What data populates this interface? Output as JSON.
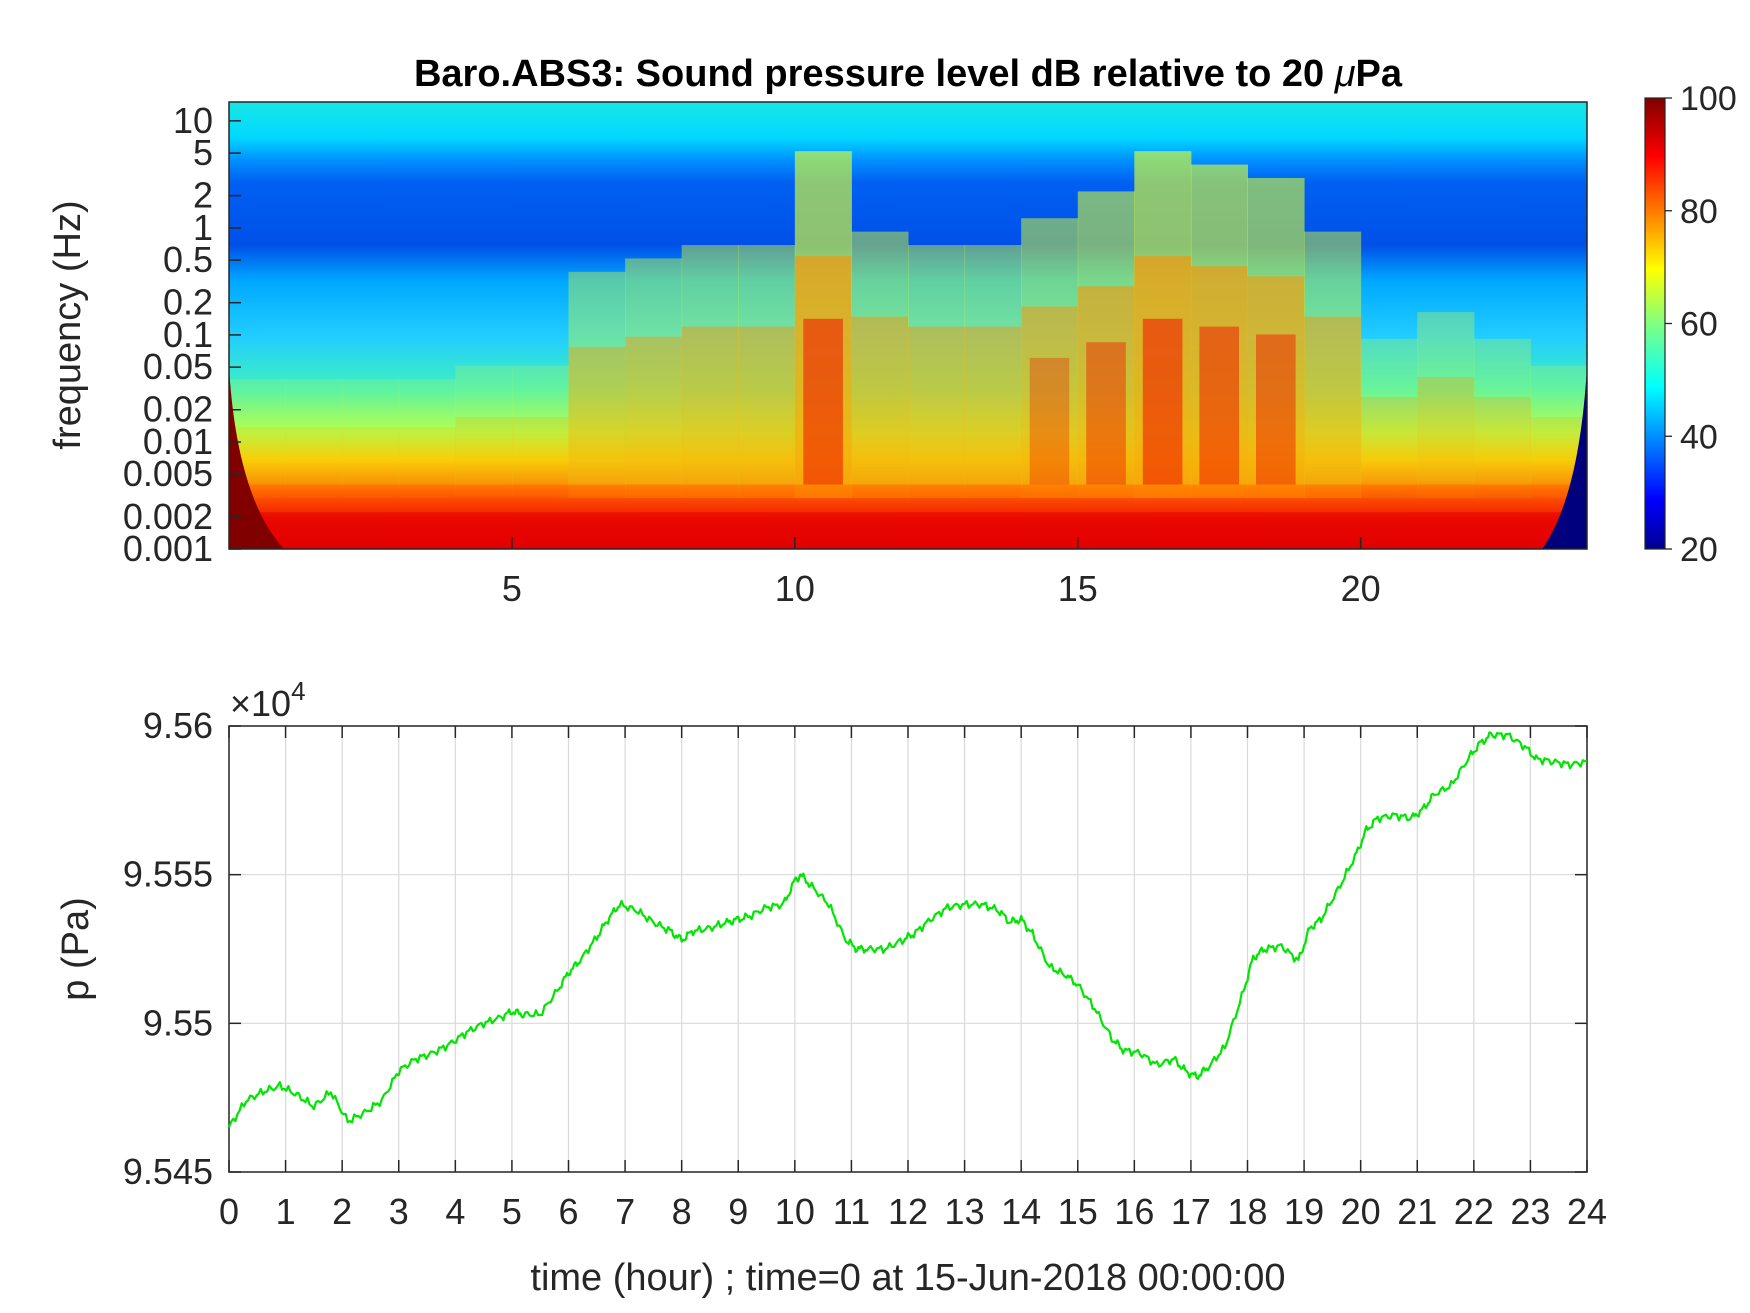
{
  "chart_data": [
    {
      "type": "heatmap",
      "title_prefix": "Baro.ABS3: Sound pressure level dB relative to 20 ",
      "title_mu": "μ",
      "title_suffix": "Pa",
      "ylabel": "frequency (Hz)",
      "xlim": [
        0,
        24
      ],
      "x_ticks": [
        5,
        10,
        15,
        20
      ],
      "y_scale": "log",
      "ylim": [
        0.001,
        15
      ],
      "y_ticks": [
        0.001,
        0.002,
        0.005,
        0.01,
        0.02,
        0.05,
        0.1,
        0.2,
        0.5,
        1,
        2,
        5,
        10
      ],
      "y_tick_labels": [
        "0.001",
        "0.002",
        "0.005",
        "0.01",
        "0.02",
        "0.05",
        "0.1",
        "0.2",
        "0.5",
        "1",
        "2",
        "5",
        "10"
      ],
      "colormap": "jet",
      "colorbar": {
        "range": [
          20,
          100
        ],
        "ticks": [
          20,
          40,
          60,
          80,
          100
        ],
        "tick_labels": [
          "20",
          "40",
          "60",
          "80",
          "100"
        ]
      },
      "activity_by_hour": [
        {
          "t": 0,
          "level": 0.05
        },
        {
          "t": 1,
          "level": 0.05
        },
        {
          "t": 2,
          "level": 0.05
        },
        {
          "t": 3,
          "level": 0.05
        },
        {
          "t": 4,
          "level": 0.1
        },
        {
          "t": 5,
          "level": 0.1
        },
        {
          "t": 6,
          "level": 0.45
        },
        {
          "t": 7,
          "level": 0.5
        },
        {
          "t": 8,
          "level": 0.55
        },
        {
          "t": 9,
          "level": 0.55
        },
        {
          "t": 10,
          "level": 0.9
        },
        {
          "t": 11,
          "level": 0.6
        },
        {
          "t": 12,
          "level": 0.55
        },
        {
          "t": 13,
          "level": 0.55
        },
        {
          "t": 14,
          "level": 0.65
        },
        {
          "t": 15,
          "level": 0.75
        },
        {
          "t": 16,
          "level": 0.9
        },
        {
          "t": 17,
          "level": 0.85
        },
        {
          "t": 18,
          "level": 0.8
        },
        {
          "t": 19,
          "level": 0.6
        },
        {
          "t": 20,
          "level": 0.2
        },
        {
          "t": 21,
          "level": 0.3
        },
        {
          "t": 22,
          "level": 0.2
        },
        {
          "t": 23,
          "level": 0.1
        }
      ]
    },
    {
      "type": "line",
      "ylabel": "p (Pa)",
      "xlabel": "time (hour) ; time=0 at 15-Jun-2018 00:00:00",
      "xlim": [
        0,
        24
      ],
      "ylim": [
        95450,
        95600
      ],
      "x_ticks": [
        0,
        1,
        2,
        3,
        4,
        5,
        6,
        7,
        8,
        9,
        10,
        11,
        12,
        13,
        14,
        15,
        16,
        17,
        18,
        19,
        20,
        21,
        22,
        23,
        24
      ],
      "y_ticks": [
        95450,
        95500,
        95550,
        95600
      ],
      "y_tick_labels": [
        "9.545",
        "9.55",
        "9.555",
        "9.56"
      ],
      "y_multiplier_base": "×10",
      "y_multiplier_exp": "4",
      "grid": true,
      "color": "#00e600",
      "x": [
        0,
        0.3,
        0.6,
        0.9,
        1.2,
        1.5,
        1.8,
        2.1,
        2.4,
        2.7,
        3.0,
        3.3,
        3.6,
        3.9,
        4.2,
        4.5,
        4.8,
        5.0,
        5.2,
        5.5,
        5.8,
        6.0,
        6.2,
        6.5,
        6.7,
        6.9,
        7.2,
        7.5,
        7.8,
        8.0,
        8.2,
        8.5,
        8.8,
        9.0,
        9.2,
        9.5,
        9.8,
        10.0,
        10.1,
        10.3,
        10.6,
        10.9,
        11.1,
        11.3,
        11.6,
        11.9,
        12.1,
        12.4,
        12.7,
        13.0,
        13.3,
        13.6,
        13.8,
        14.0,
        14.2,
        14.5,
        14.8,
        15.0,
        15.3,
        15.6,
        15.8,
        16.1,
        16.4,
        16.7,
        16.9,
        17.1,
        17.3,
        17.6,
        17.9,
        18.1,
        18.3,
        18.6,
        18.9,
        19.1,
        19.3,
        19.6,
        19.9,
        20.1,
        20.3,
        20.6,
        20.9,
        21.1,
        21.3,
        21.6,
        21.9,
        22.1,
        22.3,
        22.6,
        22.9,
        23.1,
        23.4,
        23.7,
        24.0
      ],
      "y": [
        95465,
        95474,
        95477,
        95479,
        95476,
        95472,
        95477,
        95467,
        95470,
        95474,
        95484,
        95488,
        95490,
        95493,
        95497,
        95500,
        95502,
        95504,
        95503,
        95503,
        95511,
        95517,
        95521,
        95529,
        95535,
        95540,
        95538,
        95534,
        95531,
        95528,
        95531,
        95532,
        95534,
        95535,
        95536,
        95539,
        95540,
        95548,
        95550,
        95546,
        95540,
        95528,
        95525,
        95525,
        95525,
        95528,
        95530,
        95535,
        95539,
        95540,
        95540,
        95538,
        95534,
        95535,
        95530,
        95519,
        95516,
        95513,
        95505,
        95495,
        95491,
        95490,
        95486,
        95488,
        95484,
        95482,
        95485,
        95492,
        95509,
        95522,
        95525,
        95526,
        95521,
        95532,
        95535,
        95545,
        95556,
        95565,
        95569,
        95570,
        95569,
        95572,
        95577,
        95580,
        95589,
        95594,
        95597,
        95597,
        95593,
        95589,
        95588,
        95587,
        95588
      ]
    }
  ]
}
